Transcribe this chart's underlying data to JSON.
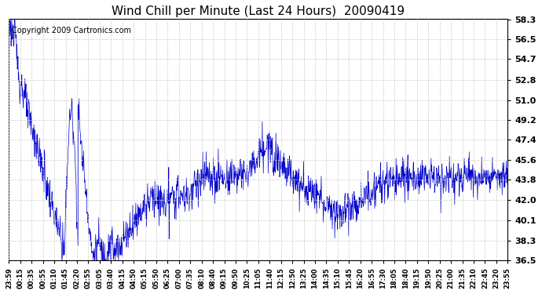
{
  "title": "Wind Chill per Minute (Last 24 Hours)  20090419",
  "copyright": "Copyright 2009 Cartronics.com",
  "line_color": "#0000cc",
  "background_color": "#ffffff",
  "grid_color": "#cccccc",
  "yticks": [
    36.5,
    38.3,
    40.1,
    42.0,
    43.8,
    45.6,
    47.4,
    49.2,
    51.0,
    52.8,
    54.7,
    56.5,
    58.3
  ],
  "ylim": [
    36.5,
    58.3
  ],
  "xtick_labels": [
    "23:59",
    "00:15",
    "00:35",
    "00:55",
    "01:10",
    "01:45",
    "02:20",
    "02:55",
    "03:05",
    "03:40",
    "04:15",
    "04:50",
    "05:15",
    "05:50",
    "06:25",
    "07:00",
    "07:35",
    "08:10",
    "08:40",
    "09:15",
    "09:50",
    "10:25",
    "11:05",
    "11:40",
    "12:15",
    "12:50",
    "13:25",
    "14:00",
    "14:35",
    "15:10",
    "15:45",
    "16:20",
    "16:55",
    "17:30",
    "18:05",
    "18:40",
    "19:15",
    "19:50",
    "20:25",
    "21:00",
    "21:35",
    "22:10",
    "22:45",
    "23:20",
    "23:55"
  ],
  "title_fontsize": 11,
  "copyright_fontsize": 7,
  "ytick_fontsize": 8,
  "xtick_fontsize": 6
}
